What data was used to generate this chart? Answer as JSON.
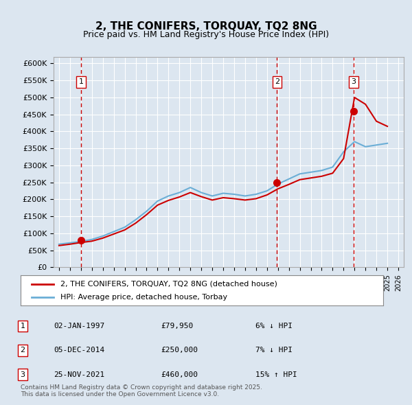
{
  "title": "2, THE CONIFERS, TORQUAY, TQ2 8NG",
  "subtitle": "Price paid vs. HM Land Registry's House Price Index (HPI)",
  "background_color": "#dce6f0",
  "plot_bg_color": "#dce6f0",
  "x_start_year": 1995,
  "x_end_year": 2026,
  "y_min": 0,
  "y_max": 620000,
  "y_ticks": [
    0,
    50000,
    100000,
    150000,
    200000,
    250000,
    300000,
    350000,
    400000,
    450000,
    500000,
    550000,
    600000
  ],
  "hpi_line_color": "#6baed6",
  "price_line_color": "#cc0000",
  "sale_marker_color": "#cc0000",
  "vline_color": "#cc0000",
  "sales": [
    {
      "date_num": 1997.01,
      "price": 79950,
      "label": "1"
    },
    {
      "date_num": 2014.92,
      "price": 250000,
      "label": "2"
    },
    {
      "date_num": 2021.9,
      "price": 460000,
      "label": "3"
    }
  ],
  "legend_entries": [
    "2, THE CONIFERS, TORQUAY, TQ2 8NG (detached house)",
    "HPI: Average price, detached house, Torbay"
  ],
  "table_rows": [
    {
      "num": "1",
      "date": "02-JAN-1997",
      "price": "£79,950",
      "change": "6% ↓ HPI"
    },
    {
      "num": "2",
      "date": "05-DEC-2014",
      "price": "£250,000",
      "change": "7% ↓ HPI"
    },
    {
      "num": "3",
      "date": "25-NOV-2021",
      "price": "£460,000",
      "change": "15% ↑ HPI"
    }
  ],
  "footer": "Contains HM Land Registry data © Crown copyright and database right 2025.\nThis data is licensed under the Open Government Licence v3.0.",
  "hpi_data": {
    "years": [
      1995,
      1996,
      1997,
      1998,
      1999,
      2000,
      2001,
      2002,
      2003,
      2004,
      2005,
      2006,
      2007,
      2008,
      2009,
      2010,
      2011,
      2012,
      2013,
      2014,
      2015,
      2016,
      2017,
      2018,
      2019,
      2020,
      2021,
      2022,
      2023,
      2024,
      2025
    ],
    "values": [
      68000,
      72000,
      76000,
      82000,
      92000,
      105000,
      118000,
      140000,
      165000,
      195000,
      210000,
      220000,
      235000,
      220000,
      210000,
      218000,
      215000,
      210000,
      215000,
      225000,
      245000,
      260000,
      275000,
      280000,
      285000,
      295000,
      340000,
      370000,
      355000,
      360000,
      365000
    ]
  },
  "price_data": {
    "years": [
      1995,
      1996,
      1997,
      1998,
      1999,
      2000,
      2001,
      2002,
      2003,
      2004,
      2005,
      2006,
      2007,
      2008,
      2009,
      2010,
      2011,
      2012,
      2013,
      2014,
      2015,
      2016,
      2017,
      2018,
      2019,
      2020,
      2021,
      2022,
      2023,
      2024,
      2025
    ],
    "values": [
      64000,
      68000,
      73000,
      77000,
      86000,
      98000,
      110000,
      130000,
      155000,
      183000,
      197000,
      207000,
      220000,
      208000,
      198000,
      205000,
      202000,
      198000,
      202000,
      213000,
      231000,
      244000,
      258000,
      263000,
      268000,
      277000,
      320000,
      500000,
      480000,
      430000,
      415000
    ]
  }
}
